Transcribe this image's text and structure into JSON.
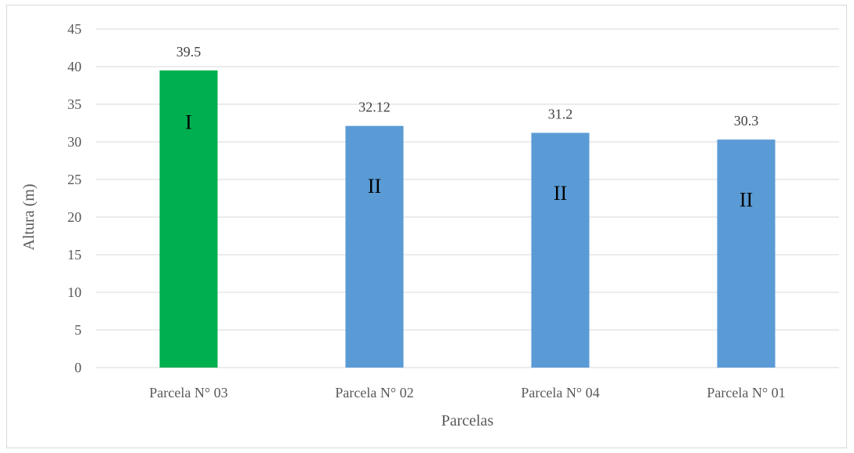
{
  "chart_data": {
    "type": "bar",
    "categories": [
      "Parcela N° 03",
      "Parcela N° 02",
      "Parcela N° 04",
      "Parcela N° 01"
    ],
    "values": [
      39.5,
      32.12,
      31.2,
      30.3
    ],
    "data_labels": [
      "39.5",
      "32.12",
      "31.2",
      "30.3"
    ],
    "group_labels": [
      "I",
      "II",
      "II",
      "II"
    ],
    "bar_colors": [
      "#00b050",
      "#5b9bd5",
      "#5b9bd5",
      "#5b9bd5"
    ],
    "title": "",
    "xlabel": "Parcelas",
    "ylabel": "Altura (m)",
    "ylim": [
      0,
      45
    ],
    "yticks": [
      "0",
      "5",
      "10",
      "15",
      "20",
      "25",
      "30",
      "35",
      "40",
      "45"
    ],
    "grid": true,
    "legend": "none"
  }
}
